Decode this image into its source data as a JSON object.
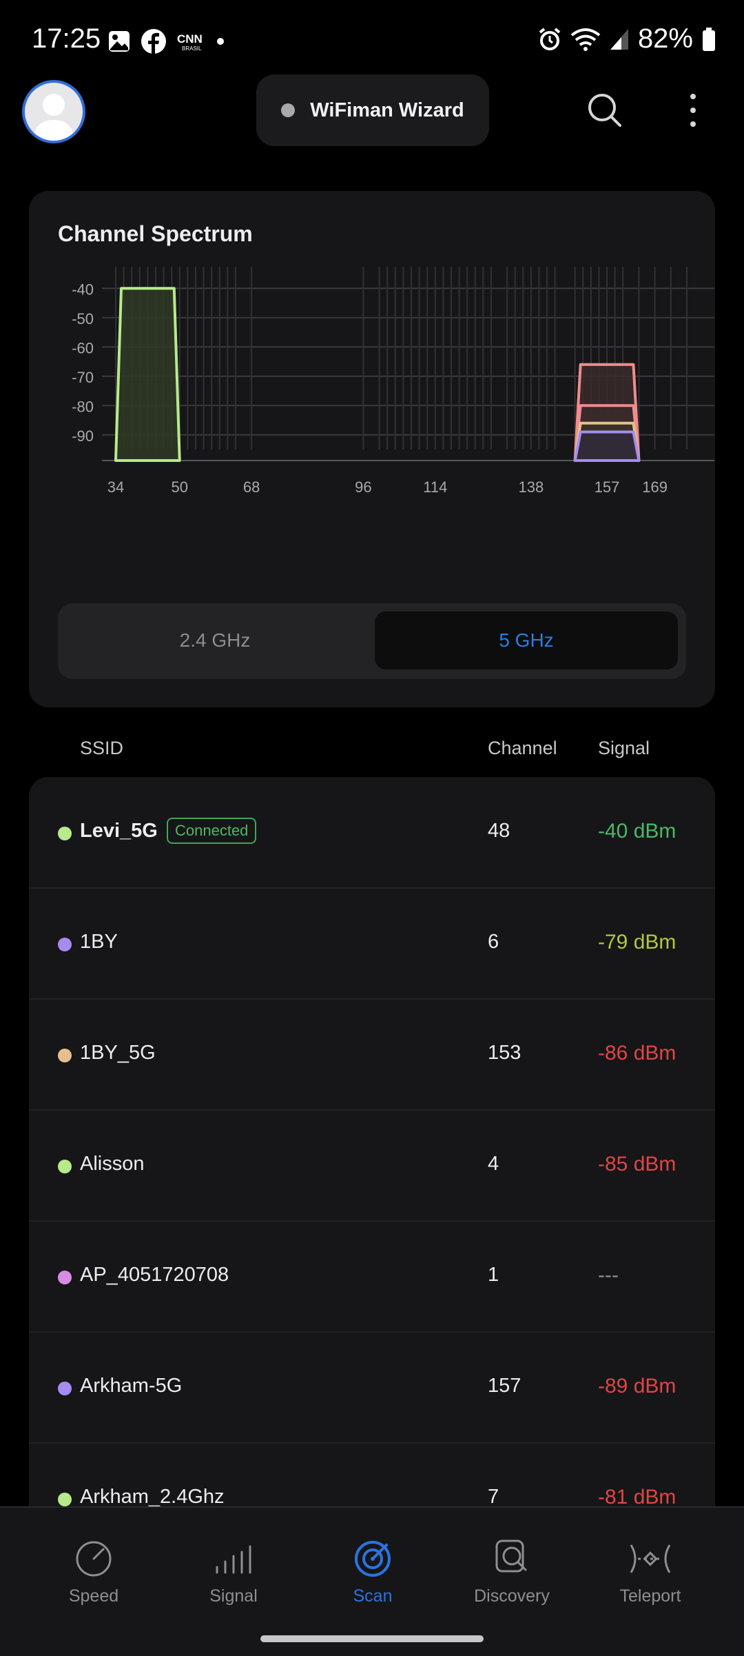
{
  "status_bar": {
    "time": "17:25",
    "battery": "82%",
    "notification_icons": [
      "gallery-icon",
      "facebook-icon",
      "cnn-brasil-icon",
      "dot-icon"
    ],
    "system_icons": [
      "alarm-icon",
      "wifi-icon",
      "signal-icon",
      "battery-icon"
    ]
  },
  "header": {
    "title": "WiFiman Wizard",
    "status_dot_color": "#a8a8ad",
    "icons": [
      "avatar-icon",
      "search-icon",
      "more-vertical-icon"
    ]
  },
  "spectrum": {
    "title": "Channel Spectrum",
    "bands": [
      "2.4 GHz",
      "5 GHz"
    ],
    "selected_band": "5 GHz",
    "accent": "#2d7de0"
  },
  "chart_data": {
    "type": "area",
    "title": "Channel Spectrum",
    "xlabel": "",
    "ylabel": "",
    "y_ticks": [
      -40,
      -50,
      -60,
      -70,
      -80,
      -90
    ],
    "x_ticks": [
      34,
      50,
      68,
      96,
      114,
      138,
      157,
      169
    ],
    "ylim": [
      -95,
      -35
    ],
    "xlim": [
      34,
      177
    ],
    "grid": true,
    "series": [
      {
        "channel_start": 34,
        "channel_end": 50,
        "top_dBm": -40,
        "color": "#b7ea8a",
        "fill": "#2f3a26"
      },
      {
        "channel_start": 149,
        "channel_end": 165,
        "top_dBm": -66,
        "color": "#f08c8c",
        "fill": "#3a2a2c"
      },
      {
        "channel_start": 149,
        "channel_end": 165,
        "top_dBm": -80,
        "color": "#f08c8c",
        "fill": "#3a2a2c"
      },
      {
        "channel_start": 149,
        "channel_end": 165,
        "top_dBm": -86,
        "color": "#e6c08c",
        "fill": "#3a3228"
      },
      {
        "channel_start": 149,
        "channel_end": 165,
        "top_dBm": -89,
        "color": "#a58cf0",
        "fill": "#2f2a3a"
      }
    ]
  },
  "networks": {
    "columns": [
      "SSID",
      "Channel",
      "Signal"
    ],
    "connected_label": "Connected",
    "rows": [
      {
        "ssid": "Levi_5G",
        "channel": "48",
        "signal": "-40 dBm",
        "dot": "#b7ea8a",
        "signal_color": "#4cb867",
        "connected": true
      },
      {
        "ssid": "1BY",
        "channel": "6",
        "signal": "-79 dBm",
        "dot": "#a58cf0",
        "signal_color": "#b3c73f",
        "connected": false
      },
      {
        "ssid": "1BY_5G",
        "channel": "153",
        "signal": "-86 dBm",
        "dot": "#e6c08c",
        "signal_color": "#e14545",
        "connected": false
      },
      {
        "ssid": "Alisson",
        "channel": "4",
        "signal": "-85 dBm",
        "dot": "#b7ea8a",
        "signal_color": "#e14545",
        "connected": false
      },
      {
        "ssid": "AP_4051720708",
        "channel": "1",
        "signal": "---",
        "dot": "#d88ce6",
        "signal_color": "#8e8e94",
        "connected": false
      },
      {
        "ssid": "Arkham-5G",
        "channel": "157",
        "signal": "-89 dBm",
        "dot": "#a58cf0",
        "signal_color": "#e14545",
        "connected": false
      },
      {
        "ssid": "Arkham_2.4Ghz",
        "channel": "7",
        "signal": "-81 dBm",
        "dot": "#b7ea8a",
        "signal_color": "#e14545",
        "connected": false
      }
    ]
  },
  "bottom_nav": {
    "items": [
      {
        "label": "Speed",
        "icon": "speedometer-icon"
      },
      {
        "label": "Signal",
        "icon": "signal-bars-icon"
      },
      {
        "label": "Scan",
        "icon": "radar-icon"
      },
      {
        "label": "Discovery",
        "icon": "device-search-icon"
      },
      {
        "label": "Teleport",
        "icon": "teleport-icon"
      }
    ],
    "active": "Scan",
    "active_color": "#2a74e0"
  }
}
